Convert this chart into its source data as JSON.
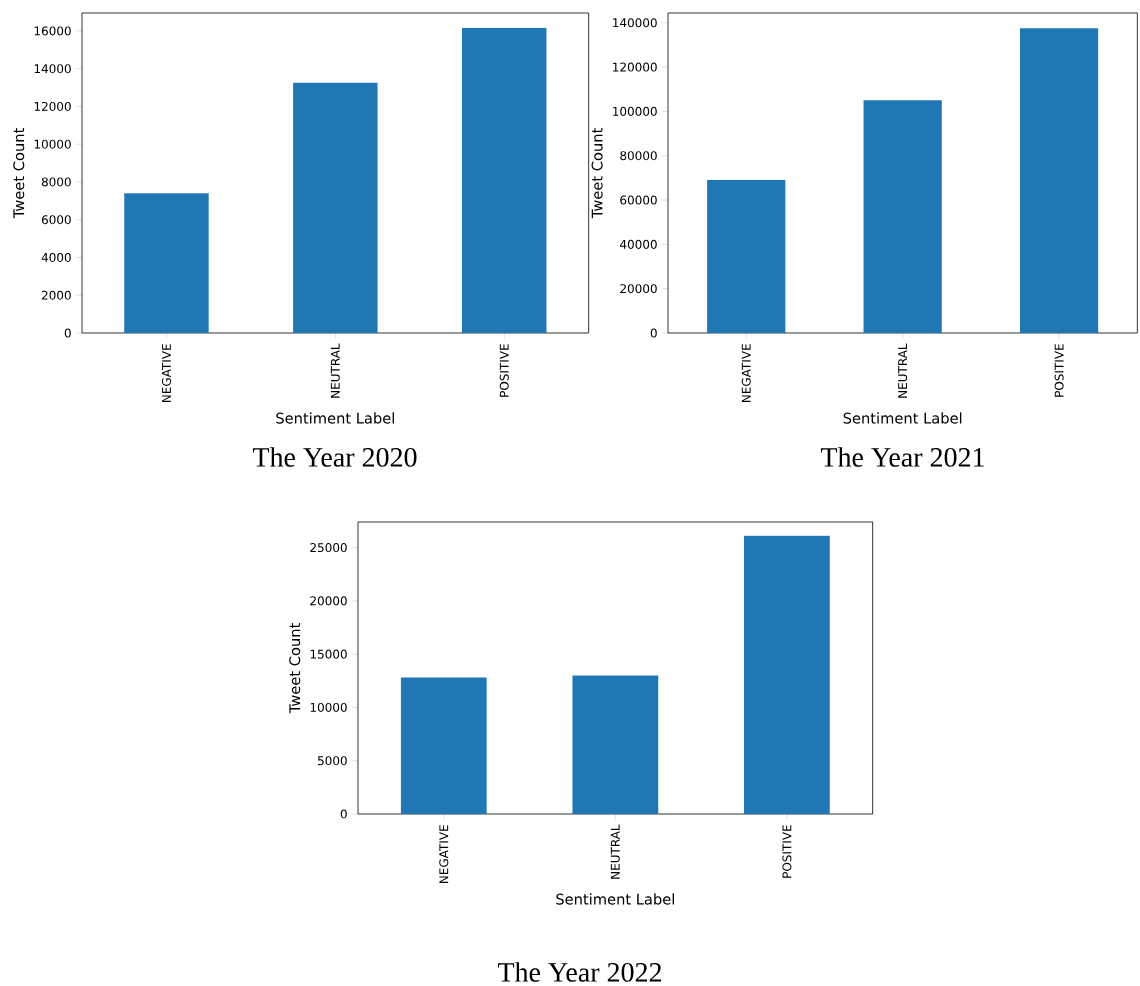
{
  "chart_data": [
    {
      "type": "bar",
      "title": "The Year 2020",
      "xlabel": "Sentiment Label",
      "ylabel": "Tweet Count",
      "categories": [
        "NEGATIVE",
        "NEUTRAL",
        "POSITIVE"
      ],
      "values": [
        7400,
        13250,
        16150
      ],
      "color": "#1f77b4",
      "ylim": [
        0,
        16950
      ],
      "yticks": [
        0,
        2000,
        4000,
        6000,
        8000,
        10000,
        12000,
        14000,
        16000
      ]
    },
    {
      "type": "bar",
      "title": "The Year 2021",
      "xlabel": "Sentiment Label",
      "ylabel": "Tweet Count",
      "categories": [
        "NEGATIVE",
        "NEUTRAL",
        "POSITIVE"
      ],
      "values": [
        69000,
        105000,
        137500
      ],
      "color": "#1f77b4",
      "ylim": [
        0,
        144400
      ],
      "yticks": [
        0,
        20000,
        40000,
        60000,
        80000,
        100000,
        120000,
        140000
      ]
    },
    {
      "type": "bar",
      "title": "The Year 2022",
      "xlabel": "Sentiment Label",
      "ylabel": "Tweet Count",
      "categories": [
        "NEGATIVE",
        "NEUTRAL",
        "POSITIVE"
      ],
      "values": [
        12800,
        13000,
        26100
      ],
      "color": "#1f77b4",
      "ylim": [
        0,
        27400
      ],
      "yticks": [
        0,
        5000,
        10000,
        15000,
        20000,
        25000
      ]
    }
  ]
}
